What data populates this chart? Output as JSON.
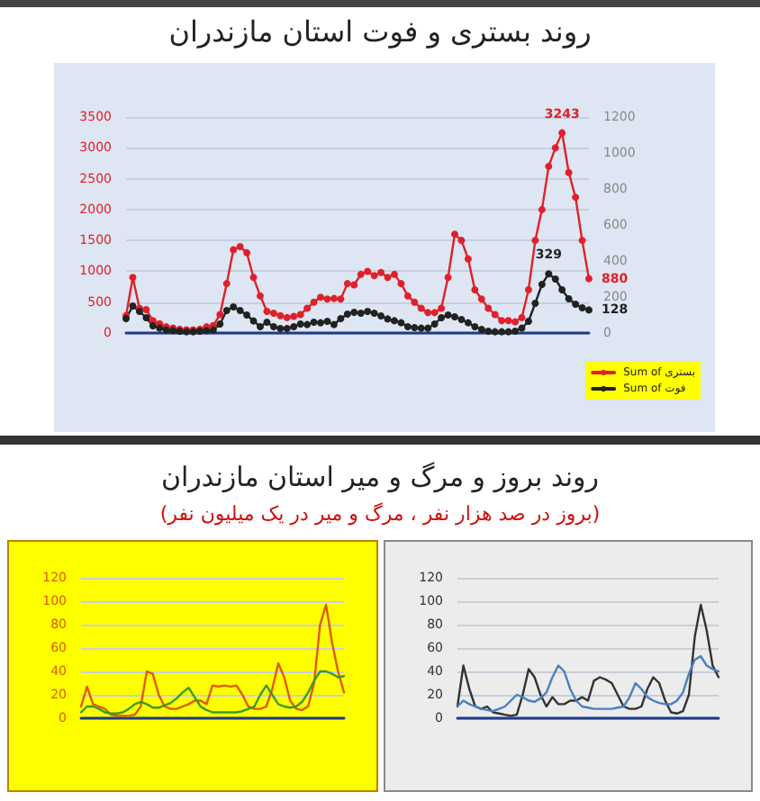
{
  "chart_data": [
    {
      "type": "line",
      "title": "روند بستری و فوت استان مازندران",
      "categories": [
        null,
        null,
        null,
        null,
        null,
        null,
        null,
        null,
        null,
        null,
        null,
        null,
        null,
        null,
        null,
        null,
        null,
        null,
        null,
        null,
        null,
        null,
        null,
        null,
        null,
        null,
        null,
        null,
        null,
        null,
        null,
        null,
        null,
        null,
        null,
        null,
        null,
        null,
        null,
        null,
        null,
        null,
        null,
        null,
        null,
        null,
        null,
        null,
        null,
        null,
        null,
        null,
        null,
        null,
        null,
        null,
        null,
        null,
        null,
        null,
        null,
        null,
        null,
        null,
        null,
        null,
        null,
        null,
        null,
        null
      ],
      "series": [
        {
          "name": "Sum of بستری",
          "color": "#e0202a",
          "values": [
            280,
            900,
            400,
            380,
            200,
            150,
            100,
            80,
            60,
            50,
            50,
            60,
            100,
            120,
            300,
            800,
            1350,
            1400,
            1300,
            900,
            600,
            350,
            320,
            280,
            250,
            270,
            300,
            400,
            500,
            580,
            550,
            560,
            550,
            800,
            780,
            950,
            1000,
            930,
            980,
            900,
            950,
            800,
            600,
            500,
            400,
            330,
            330,
            400,
            900,
            1600,
            1500,
            1200,
            700,
            550,
            400,
            300,
            200,
            200,
            180,
            250,
            700,
            1500,
            2000,
            2700,
            3000,
            3243,
            2600,
            2200,
            1500,
            880
          ],
          "value_labels": [
            null,
            null,
            null,
            null,
            null,
            null,
            null,
            null,
            null,
            null,
            null,
            null,
            null,
            null,
            null,
            null,
            null,
            null,
            null,
            null,
            null,
            null,
            null,
            null,
            null,
            null,
            null,
            null,
            null,
            null,
            null,
            null,
            null,
            null,
            null,
            null,
            null,
            null,
            null,
            null,
            null,
            null,
            null,
            null,
            null,
            null,
            null,
            null,
            null,
            null,
            null,
            null,
            null,
            null,
            null,
            null,
            null,
            null,
            null,
            null,
            null,
            null,
            null,
            null,
            null,
            "3243",
            null,
            null,
            null,
            "880"
          ]
        },
        {
          "name": "Sum of فوت",
          "color": "#222222",
          "axis": "y2",
          "values": [
            80,
            150,
            120,
            85,
            40,
            27,
            17,
            13,
            10,
            7,
            7,
            10,
            13,
            17,
            50,
            125,
            145,
            125,
            100,
            67,
            35,
            60,
            35,
            25,
            25,
            35,
            50,
            47,
            60,
            57,
            65,
            47,
            80,
            105,
            115,
            110,
            120,
            110,
            95,
            78,
            68,
            57,
            35,
            30,
            27,
            27,
            50,
            85,
            100,
            90,
            75,
            57,
            35,
            20,
            10,
            7,
            7,
            7,
            10,
            27,
            65,
            165,
            270,
            329,
            300,
            240,
            190,
            160,
            140,
            128
          ],
          "value_labels": [
            null,
            null,
            null,
            null,
            null,
            null,
            null,
            null,
            null,
            null,
            null,
            null,
            null,
            null,
            null,
            null,
            null,
            null,
            null,
            null,
            null,
            null,
            null,
            null,
            null,
            null,
            null,
            null,
            null,
            null,
            null,
            null,
            null,
            null,
            null,
            null,
            null,
            null,
            null,
            null,
            null,
            null,
            null,
            null,
            null,
            null,
            null,
            null,
            null,
            null,
            null,
            null,
            null,
            null,
            null,
            null,
            null,
            null,
            null,
            null,
            null,
            null,
            null,
            "329",
            null,
            null,
            null,
            null,
            null,
            "128"
          ]
        }
      ],
      "ylim": [
        0,
        3500
      ],
      "yticks": [
        0,
        500,
        1000,
        1500,
        2000,
        2500,
        3000,
        3500
      ],
      "y2lim": [
        0,
        1200
      ],
      "y2ticks": [
        0,
        200,
        400,
        600,
        800,
        1000,
        1200
      ],
      "grid": "y",
      "legend": "bottom right",
      "marker": "circle",
      "line_style": "solid"
    },
    {
      "type": "line",
      "title": "روند بروز و مرگ و میر استان مازندران",
      "subtitle": "(بروز در صد هزار نفر ، مرگ و میر در یک میلیون نفر)",
      "categories": [
        null,
        null,
        null,
        null,
        null,
        null,
        null,
        null,
        null,
        null,
        null,
        null,
        null,
        null,
        null,
        null,
        null,
        null,
        null,
        null,
        null,
        null,
        null,
        null,
        null,
        null,
        null,
        null,
        null,
        null,
        null,
        null,
        null,
        null,
        null,
        null,
        null,
        null,
        null,
        null,
        null,
        null,
        null,
        null,
        null
      ],
      "series": [
        {
          "color": "#e05a00",
          "values": [
            10,
            27,
            12,
            10,
            8,
            3,
            2,
            2,
            2,
            3,
            10,
            40,
            38,
            20,
            10,
            8,
            8,
            10,
            12,
            15,
            15,
            12,
            28,
            27,
            28,
            27,
            28,
            20,
            10,
            8,
            8,
            10,
            25,
            47,
            35,
            15,
            8,
            7,
            10,
            30,
            80,
            97,
            65,
            40,
            22
          ]
        },
        {
          "color": "#3a9a2a",
          "values": [
            5,
            10,
            10,
            8,
            5,
            4,
            4,
            5,
            8,
            12,
            14,
            12,
            9,
            9,
            11,
            13,
            17,
            22,
            26,
            18,
            10,
            7,
            5,
            5,
            5,
            5,
            5,
            6,
            8,
            10,
            20,
            28,
            20,
            12,
            10,
            9,
            10,
            14,
            22,
            32,
            40,
            40,
            38,
            35,
            36
          ]
        }
      ],
      "ylim": [
        0,
        120
      ],
      "yticks": [
        0,
        20,
        40,
        60,
        80,
        100,
        120
      ],
      "grid": "y",
      "legend": false,
      "marker": "none",
      "line_style": "solid"
    },
    {
      "type": "line",
      "categories": [
        null,
        null,
        null,
        null,
        null,
        null,
        null,
        null,
        null,
        null,
        null,
        null,
        null,
        null,
        null,
        null,
        null,
        null,
        null,
        null,
        null,
        null,
        null,
        null,
        null,
        null,
        null,
        null,
        null,
        null,
        null,
        null,
        null,
        null,
        null,
        null,
        null,
        null,
        null,
        null,
        null,
        null,
        null,
        null,
        null
      ],
      "series": [
        {
          "color": "#333333",
          "values": [
            10,
            45,
            25,
            10,
            8,
            10,
            5,
            4,
            3,
            2,
            3,
            20,
            42,
            35,
            20,
            10,
            18,
            12,
            12,
            15,
            15,
            18,
            15,
            32,
            35,
            33,
            30,
            20,
            10,
            8,
            8,
            10,
            25,
            35,
            30,
            15,
            5,
            4,
            6,
            20,
            70,
            97,
            75,
            45,
            35
          ]
        },
        {
          "color": "#4a7fc0",
          "values": [
            10,
            15,
            12,
            10,
            8,
            7,
            6,
            8,
            10,
            15,
            20,
            18,
            15,
            14,
            17,
            22,
            35,
            45,
            40,
            25,
            15,
            10,
            9,
            8,
            8,
            8,
            8,
            9,
            10,
            18,
            30,
            25,
            18,
            15,
            13,
            12,
            12,
            15,
            22,
            38,
            50,
            53,
            45,
            42,
            40
          ]
        }
      ],
      "ylim": [
        0,
        120
      ],
      "yticks": [
        0,
        20,
        40,
        60,
        80,
        100,
        120
      ],
      "grid": "y",
      "legend": false,
      "marker": "none",
      "line_style": "solid"
    }
  ]
}
